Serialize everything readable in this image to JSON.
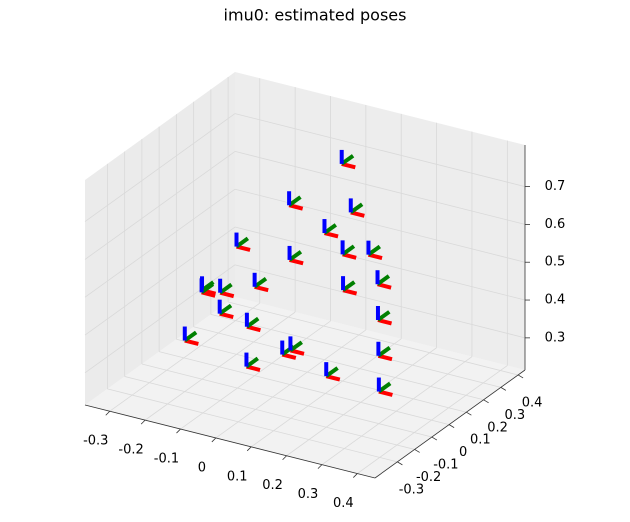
{
  "chart_data": {
    "type": "pose3d",
    "title": "imu0: estimated poses",
    "axis_colors": [
      "#ff0000",
      "#008000",
      "#0000ff"
    ],
    "xlim": [
      -0.37,
      0.45
    ],
    "ylim": [
      -0.43,
      0.44
    ],
    "zlim": [
      0.215,
      0.81
    ],
    "xticks": [
      -0.3,
      -0.2,
      -0.1,
      0.0,
      0.1,
      0.2,
      0.3,
      0.4
    ],
    "yticks": [
      -0.3,
      -0.2,
      -0.1,
      0.0,
      0.1,
      0.2,
      0.3,
      0.4
    ],
    "zticks": [
      0.3,
      0.4,
      0.5,
      0.6,
      0.7
    ],
    "grid": true,
    "x": [
      -0.2,
      -0.15,
      -0.1,
      -0.05,
      0,
      0.05,
      0.1,
      0.15,
      0.2,
      0.25,
      0.3,
      0.2,
      0.1,
      0,
      -0.1,
      -0.2,
      -0.25,
      -0.2,
      -0.1,
      0,
      0.1,
      0.15,
      0.05,
      -0.05
    ],
    "y": [
      -0.2,
      -0.1,
      0,
      0.1,
      0.2,
      0.25,
      0.25,
      0.2,
      0.1,
      0,
      -0.1,
      -0.2,
      -0.25,
      -0.25,
      -0.2,
      -0.1,
      0,
      0.1,
      0.2,
      0.3,
      0.1,
      0,
      -0.1,
      -0.15
    ],
    "z": [
      0.35,
      0.4,
      0.45,
      0.5,
      0.55,
      0.6,
      0.5,
      0.45,
      0.4,
      0.35,
      0.3,
      0.35,
      0.4,
      0.45,
      0.5,
      0.45,
      0.4,
      0.5,
      0.6,
      0.7,
      0.55,
      0.5,
      0.35,
      0.3
    ]
  }
}
